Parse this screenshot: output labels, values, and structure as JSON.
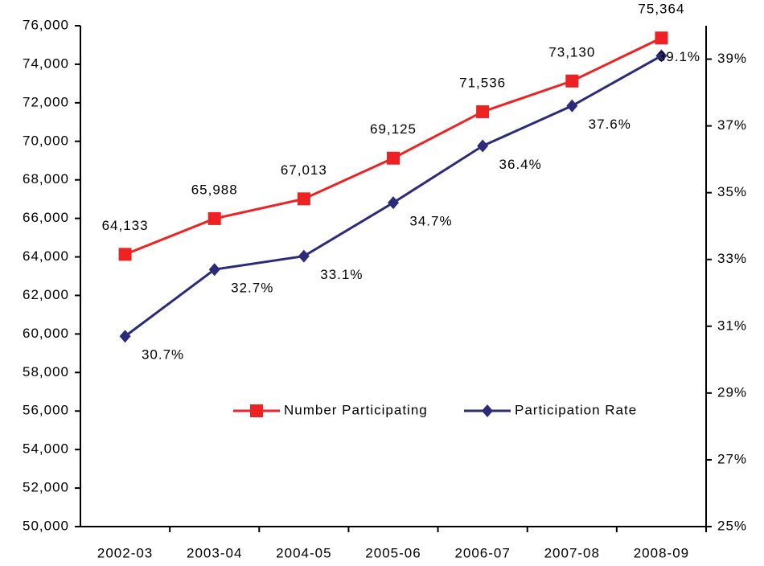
{
  "chart_data": {
    "type": "line",
    "categories": [
      "2002-03",
      "2003-04",
      "2004-05",
      "2005-06",
      "2006-07",
      "2007-08",
      "2008-09"
    ],
    "series": [
      {
        "name": "Number Participating",
        "color": "#ee2222",
        "marker": "square",
        "values": [
          64133,
          65988,
          67013,
          69125,
          71536,
          73130,
          75364
        ],
        "value_labels": [
          "64,133",
          "65,988",
          "67,013",
          "69,125",
          "71,536",
          "73,130",
          "75,364"
        ]
      },
      {
        "name": "Participation Rate",
        "color": "#2b2b7a",
        "marker": "diamond",
        "axis": "y2",
        "values": [
          30.7,
          32.7,
          33.1,
          34.7,
          36.4,
          37.6,
          39.1
        ],
        "value_labels": [
          "30.7%",
          "32.7%",
          "33.1%",
          "34.7%",
          "36.4%",
          "37.6%",
          "39.1%"
        ]
      }
    ],
    "ylim": [
      50000,
      76000
    ],
    "yticks": [
      {
        "value": 50000,
        "label": "50,000"
      },
      {
        "value": 52000,
        "label": "52,000"
      },
      {
        "value": 54000,
        "label": "54,000"
      },
      {
        "value": 56000,
        "label": "56,000"
      },
      {
        "value": 58000,
        "label": "58,000"
      },
      {
        "value": 60000,
        "label": "60,000"
      },
      {
        "value": 62000,
        "label": "62,000"
      },
      {
        "value": 64000,
        "label": "64,000"
      },
      {
        "value": 66000,
        "label": "66,000"
      },
      {
        "value": 68000,
        "label": "68,000"
      },
      {
        "value": 70000,
        "label": "70,000"
      },
      {
        "value": 72000,
        "label": "72,000"
      },
      {
        "value": 74000,
        "label": "74,000"
      },
      {
        "value": 76000,
        "label": "76,000"
      }
    ],
    "y2lim": [
      25,
      40
    ],
    "y2ticks": [
      {
        "value": 25,
        "label": "25%"
      },
      {
        "value": 27,
        "label": "27%"
      },
      {
        "value": 29,
        "label": "29%"
      },
      {
        "value": 31,
        "label": "31%"
      },
      {
        "value": 33,
        "label": "33%"
      },
      {
        "value": 35,
        "label": "35%"
      },
      {
        "value": 37,
        "label": "37%"
      },
      {
        "value": 39,
        "label": "39%"
      }
    ],
    "grid": false
  }
}
